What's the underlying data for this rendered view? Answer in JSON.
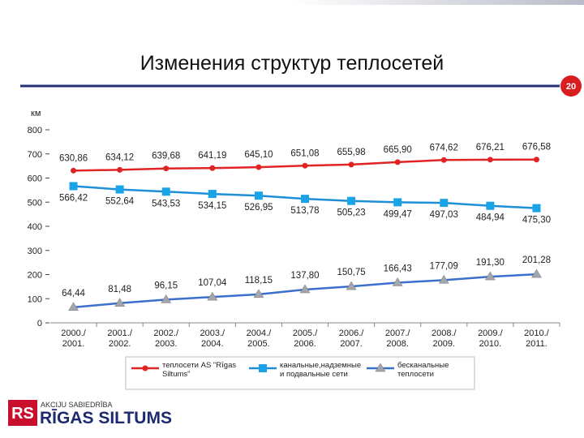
{
  "title": "Изменения структур теплосетей",
  "page_number": "20",
  "logo": {
    "mark": "RS",
    "tagline": "AKCIJU SABIEDRĪBA",
    "name": "RĪGAS SILTUMS"
  },
  "chart_data": {
    "type": "line",
    "y_label": "км",
    "categories": [
      [
        "2000./",
        "2001."
      ],
      [
        "2001./",
        "2002."
      ],
      [
        "2002./",
        "2003."
      ],
      [
        "2003./",
        "2004."
      ],
      [
        "2004./",
        "2005."
      ],
      [
        "2005./",
        "2006."
      ],
      [
        "2006./",
        "2007."
      ],
      [
        "2007./",
        "2008."
      ],
      [
        "2008./",
        "2009."
      ],
      [
        "2009./",
        "2010."
      ],
      [
        "2010./",
        "2011."
      ]
    ],
    "ylim": [
      0,
      800
    ],
    "yticks": [
      0,
      100,
      200,
      300,
      400,
      500,
      600,
      700,
      800
    ],
    "series": [
      {
        "name": "теплосети AS \"Rīgas Siltums\"",
        "color": "#e02424",
        "marker": "circle",
        "marker_color": "#e02424",
        "values": [
          630.86,
          634.12,
          639.68,
          641.19,
          645.1,
          651.08,
          655.98,
          665.9,
          674.62,
          676.21,
          676.58
        ],
        "value_labels": [
          "630,86",
          "634,12",
          "639,68",
          "641,19",
          "645,10",
          "651,08",
          "655,98",
          "665,90",
          "674,62",
          "676,21",
          "676,58"
        ]
      },
      {
        "name": "канальные,надземные и подвальные сети",
        "color": "#1e8fd6",
        "marker": "square",
        "marker_color": "#1aa3e6",
        "values": [
          566.42,
          552.64,
          543.53,
          534.15,
          526.95,
          513.78,
          505.23,
          499.47,
          497.03,
          484.94,
          475.3
        ],
        "value_labels": [
          "566,42",
          "552,64",
          "543,53",
          "534,15",
          "526,95",
          "513,78",
          "505,23",
          "499,47",
          "497,03",
          "484,94",
          "475,30"
        ]
      },
      {
        "name": "бесканальные теплосети",
        "color": "#3b6fcc",
        "marker": "triangle",
        "marker_color": "#a3a5ad",
        "values": [
          64.44,
          81.48,
          96.15,
          107.04,
          118.15,
          137.8,
          150.75,
          166.43,
          177.09,
          191.3,
          201.28
        ],
        "value_labels": [
          "64,44",
          "81,48",
          "96,15",
          "107,04",
          "118,15",
          "137,80",
          "150,75",
          "166,43",
          "177,09",
          "191,30",
          "201,28"
        ]
      }
    ]
  }
}
